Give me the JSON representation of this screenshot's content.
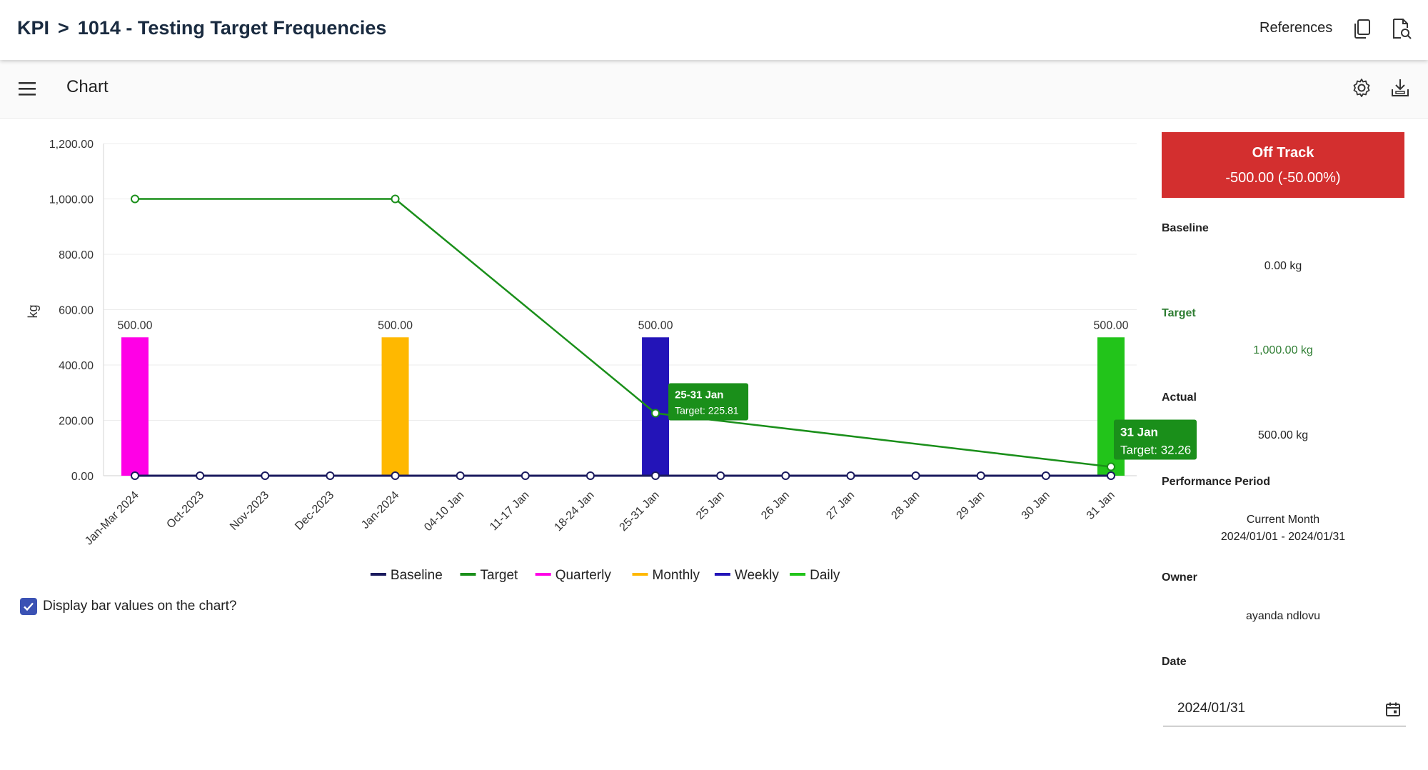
{
  "header": {
    "crumb_root": "KPI",
    "crumb_sep": ">",
    "crumb_page": "1014 - Testing Target Frequencies",
    "references_label": "References"
  },
  "toolbar": {
    "title": "Chart"
  },
  "chart_data": {
    "type": "bar",
    "categories": [
      "Jan-Mar 2024",
      "Oct-2023",
      "Nov-2023",
      "Dec-2023",
      "Jan-2024",
      "04-10 Jan",
      "11-17 Jan",
      "18-24 Jan",
      "25-31 Jan",
      "25 Jan",
      "26 Jan",
      "27 Jan",
      "28 Jan",
      "29 Jan",
      "30 Jan",
      "31 Jan"
    ],
    "ylabel": "kg",
    "ylim": [
      0,
      1200
    ],
    "yticks": [
      0,
      200,
      400,
      600,
      800,
      1000,
      1200
    ],
    "ytick_labels": [
      "0.00",
      "200.00",
      "400.00",
      "600.00",
      "800.00",
      "1,000.00",
      "1,200.00"
    ],
    "series": [
      {
        "name": "Quarterly",
        "kind": "bar",
        "color": "#ff00e6",
        "values": [
          500,
          null,
          null,
          null,
          null,
          null,
          null,
          null,
          null,
          null,
          null,
          null,
          null,
          null,
          null,
          null
        ]
      },
      {
        "name": "Monthly",
        "kind": "bar",
        "color": "#ffb800",
        "values": [
          null,
          null,
          null,
          null,
          500,
          null,
          null,
          null,
          null,
          null,
          null,
          null,
          null,
          null,
          null,
          null
        ]
      },
      {
        "name": "Weekly",
        "kind": "bar",
        "color": "#2314b8",
        "values": [
          null,
          null,
          null,
          null,
          null,
          null,
          null,
          null,
          500,
          null,
          null,
          null,
          null,
          null,
          null,
          null
        ]
      },
      {
        "name": "Daily",
        "kind": "bar",
        "color": "#22c41a",
        "values": [
          null,
          null,
          null,
          null,
          null,
          null,
          null,
          null,
          null,
          null,
          null,
          null,
          null,
          null,
          null,
          500
        ]
      },
      {
        "name": "Baseline",
        "kind": "line",
        "color": "#1a1a5e",
        "values": [
          0,
          0,
          0,
          0,
          0,
          0,
          0,
          0,
          0,
          0,
          0,
          0,
          0,
          0,
          0,
          0
        ]
      },
      {
        "name": "Target",
        "kind": "line",
        "color": "#1a8f1a",
        "points": [
          [
            0,
            1000
          ],
          [
            4,
            1000
          ],
          [
            8,
            225.81
          ],
          [
            15,
            32.26
          ]
        ]
      }
    ],
    "bar_labels": [
      "500.00",
      "500.00",
      "500.00",
      "500.00"
    ],
    "legend": [
      "Baseline",
      "Target",
      "Quarterly",
      "Monthly",
      "Weekly",
      "Daily"
    ],
    "legend_colors": [
      "#1a1a5e",
      "#1a8f1a",
      "#ff00e6",
      "#ffb800",
      "#2314b8",
      "#22c41a"
    ],
    "tooltips": [
      {
        "title": "25-31 Jan",
        "text": "Target: 225.81"
      },
      {
        "title": "31 Jan",
        "text": "Target: 32.26"
      }
    ]
  },
  "options": {
    "display_bar_values_label": "Display bar values on the chart?",
    "display_bar_values_checked": true
  },
  "panel": {
    "status_title": "Off Track",
    "status_value": "-500.00 (-50.00%)",
    "baseline_label": "Baseline",
    "baseline_value": "0.00 kg",
    "target_label": "Target",
    "target_value": "1,000.00 kg",
    "actual_label": "Actual",
    "actual_value": "500.00 kg",
    "period_label": "Performance Period",
    "period_name": "Current Month",
    "period_range": "2024/01/01 - 2024/01/31",
    "owner_label": "Owner",
    "owner_value": "ayanda ndlovu",
    "date_label": "Date",
    "date_value": "2024/01/31"
  },
  "colors": {
    "status_off_track": "#d32f2f",
    "target_green": "#2e7d32",
    "checkbox_blue": "#3b52b4"
  }
}
